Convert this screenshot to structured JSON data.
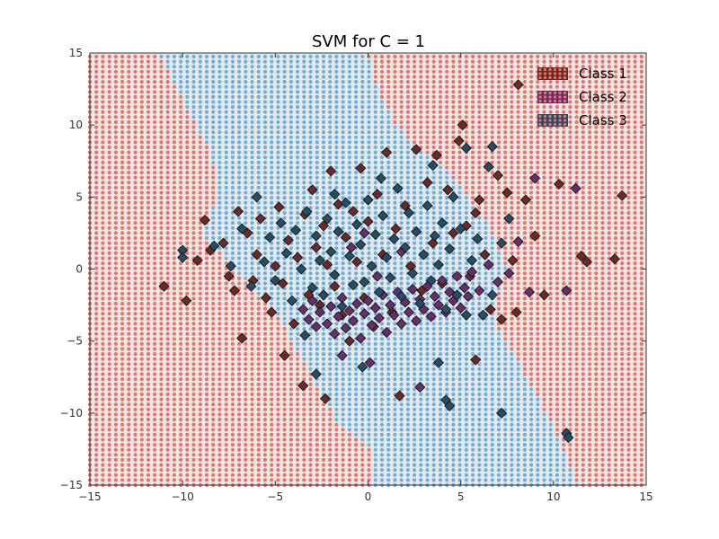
{
  "chart_data": {
    "type": "scatter",
    "title": "SVM for C = 1",
    "xlabel": "",
    "ylabel": "",
    "xlim": [
      -15,
      15
    ],
    "ylim": [
      -15,
      15
    ],
    "xticks": [
      -15,
      -10,
      -5,
      0,
      5,
      10,
      15
    ],
    "yticks": [
      -15,
      -10,
      -5,
      0,
      5,
      10,
      15
    ],
    "grid": false,
    "legend_position": "top-right",
    "background": {
      "description": "decision region grid",
      "outer_color": "#e8746a",
      "inner_color": "#6ab0e0",
      "band_polygon": [
        [
          -11.3,
          15
        ],
        [
          0,
          15
        ],
        [
          0.3,
          13
        ],
        [
          1.5,
          10
        ],
        [
          3,
          8
        ],
        [
          4.5,
          6.5
        ],
        [
          6.5,
          3
        ],
        [
          7.5,
          0
        ],
        [
          6.5,
          -3
        ],
        [
          8.5,
          -7.5
        ],
        [
          10,
          -11
        ],
        [
          11.3,
          -15
        ],
        [
          0.3,
          -15
        ],
        [
          0.2,
          -12.5
        ],
        [
          -1.5,
          -11
        ],
        [
          -3,
          -7.5
        ],
        [
          -5,
          -3
        ],
        [
          -9,
          2.5
        ],
        [
          -8,
          5.5
        ],
        [
          -8.5,
          8
        ]
      ]
    },
    "series": [
      {
        "name": "Class 1",
        "color": "#6b2a24",
        "marker": "diamond",
        "points": [
          [
            -11,
            -1.2
          ],
          [
            -9.8,
            -2.2
          ],
          [
            -9.2,
            0.6
          ],
          [
            -8.8,
            3.4
          ],
          [
            -8.5,
            1.3
          ],
          [
            -7.8,
            1.8
          ],
          [
            -7.5,
            -0.5
          ],
          [
            -7.2,
            -1.5
          ],
          [
            -7,
            4
          ],
          [
            -6.8,
            -4.8
          ],
          [
            -6.5,
            2.5
          ],
          [
            -6.2,
            -0.8
          ],
          [
            -6,
            1
          ],
          [
            -5.8,
            3.5
          ],
          [
            -5.5,
            -2
          ],
          [
            -5.2,
            -3
          ],
          [
            -5,
            0.2
          ],
          [
            -4.8,
            4.3
          ],
          [
            -4.6,
            -1
          ],
          [
            -4.5,
            -6
          ],
          [
            -4.3,
            2
          ],
          [
            -4,
            -3.8
          ],
          [
            -3.8,
            0.8
          ],
          [
            -3.5,
            -8.1
          ],
          [
            -3.4,
            3.8
          ],
          [
            -3.2,
            -1.8
          ],
          [
            -3,
            5.5
          ],
          [
            -2.8,
            1.5
          ],
          [
            -2.6,
            -2.5
          ],
          [
            -2.4,
            3
          ],
          [
            -2.2,
            0.3
          ],
          [
            -2,
            6.8
          ],
          [
            -1.8,
            -1.2
          ],
          [
            -1.6,
            4.5
          ],
          [
            -1.4,
            -3.2
          ],
          [
            -1.2,
            2.2
          ],
          [
            -1,
            -5
          ],
          [
            -0.8,
            4
          ],
          [
            -0.6,
            0.5
          ],
          [
            -0.4,
            7
          ],
          [
            -0.2,
            -2
          ],
          [
            0,
            3.3
          ],
          [
            0.3,
            -4
          ],
          [
            0.5,
            5.2
          ],
          [
            0.8,
            1
          ],
          [
            1,
            8.1
          ],
          [
            1.3,
            -3
          ],
          [
            1.5,
            2.8
          ],
          [
            1.7,
            -8.8
          ],
          [
            2,
            4.4
          ],
          [
            2.3,
            0.2
          ],
          [
            2.6,
            8.3
          ],
          [
            2.9,
            -1.5
          ],
          [
            3.2,
            6
          ],
          [
            3.5,
            1.8
          ],
          [
            3.7,
            7.9
          ],
          [
            4,
            -1
          ],
          [
            4.3,
            5.5
          ],
          [
            4.6,
            2.5
          ],
          [
            4.9,
            8.9
          ],
          [
            5.1,
            10
          ],
          [
            5.3,
            3
          ],
          [
            5.5,
            -0.5
          ],
          [
            5.8,
            -6.3
          ],
          [
            6,
            4.8
          ],
          [
            6.3,
            1
          ],
          [
            6.6,
            -2.8
          ],
          [
            7,
            6.5
          ],
          [
            7.2,
            -3.5
          ],
          [
            7.5,
            5.3
          ],
          [
            7.8,
            0.6
          ],
          [
            8,
            -3
          ],
          [
            8.5,
            4.8
          ],
          [
            9,
            2.3
          ],
          [
            9.5,
            -1.8
          ],
          [
            10.3,
            5.9
          ],
          [
            11.5,
            0.9
          ],
          [
            11.8,
            0.5
          ],
          [
            13.3,
            0.7
          ],
          [
            13.7,
            5.1
          ],
          [
            8.1,
            12.8
          ],
          [
            5.8,
            3.9
          ],
          [
            -2.3,
            -9
          ]
        ]
      },
      {
        "name": "Class 2",
        "color": "#6a2d6c",
        "marker": "diamond",
        "points": [
          [
            -3.5,
            -2.8
          ],
          [
            -3.2,
            -3.5
          ],
          [
            -3,
            -2.2
          ],
          [
            -2.8,
            -4
          ],
          [
            -2.6,
            -3
          ],
          [
            -2.4,
            -1.8
          ],
          [
            -2.2,
            -3.8
          ],
          [
            -2,
            -2.6
          ],
          [
            -1.8,
            -4.5
          ],
          [
            -1.6,
            -3.3
          ],
          [
            -1.4,
            -2
          ],
          [
            -1.2,
            -4.1
          ],
          [
            -1,
            -2.9
          ],
          [
            -0.8,
            -3.6
          ],
          [
            -0.6,
            -2.4
          ],
          [
            -0.4,
            -4.8
          ],
          [
            -0.2,
            -3.1
          ],
          [
            0,
            -2.2
          ],
          [
            0.2,
            -3.9
          ],
          [
            0.4,
            -2.7
          ],
          [
            0.6,
            -3.4
          ],
          [
            0.8,
            -1.8
          ],
          [
            1,
            -4.4
          ],
          [
            1.2,
            -2.5
          ],
          [
            1.4,
            -3.2
          ],
          [
            1.6,
            -1.6
          ],
          [
            1.8,
            -3.8
          ],
          [
            2,
            -2.3
          ],
          [
            2.2,
            -3
          ],
          [
            2.4,
            -1.4
          ],
          [
            2.6,
            -3.6
          ],
          [
            2.8,
            -2.1
          ],
          [
            3,
            -2.8
          ],
          [
            3.2,
            -1.2
          ],
          [
            3.4,
            -3.3
          ],
          [
            3.6,
            -1.9
          ],
          [
            3.8,
            -2.5
          ],
          [
            4,
            -0.8
          ],
          [
            4.2,
            -3
          ],
          [
            4.4,
            -1.6
          ],
          [
            4.6,
            -2.2
          ],
          [
            4.8,
            -0.5
          ],
          [
            5,
            -2.7
          ],
          [
            5.2,
            -1.3
          ],
          [
            5.4,
            -1.9
          ],
          [
            5.6,
            -0.2
          ],
          [
            6,
            -1.5
          ],
          [
            6.5,
            0.3
          ],
          [
            7,
            -0.9
          ],
          [
            7.6,
            -0.3
          ],
          [
            8.1,
            1.9
          ],
          [
            8.7,
            -1.6
          ],
          [
            9,
            6.3
          ],
          [
            10.7,
            -1.5
          ],
          [
            11.2,
            5.6
          ],
          [
            -1.4,
            -6
          ],
          [
            2.8,
            -8.2
          ],
          [
            -0.2,
            2.5
          ],
          [
            0.5,
            -0.5
          ],
          [
            1.8,
            1.2
          ],
          [
            -0.9,
            1.5
          ],
          [
            0.1,
            -6.5
          ]
        ]
      },
      {
        "name": "Class 3",
        "color": "#244d66",
        "marker": "diamond",
        "points": [
          [
            -10,
            1.3
          ],
          [
            -10,
            0.8
          ],
          [
            -8.3,
            1.6
          ],
          [
            -7.4,
            0.2
          ],
          [
            -6.8,
            2.8
          ],
          [
            -6.3,
            -1.2
          ],
          [
            -6,
            5
          ],
          [
            -5.6,
            0.5
          ],
          [
            -5.3,
            2.2
          ],
          [
            -5,
            -0.8
          ],
          [
            -4.7,
            3.2
          ],
          [
            -4.4,
            1.1
          ],
          [
            -4.1,
            -2.2
          ],
          [
            -3.9,
            2.7
          ],
          [
            -3.6,
            0
          ],
          [
            -3.3,
            4
          ],
          [
            -3,
            -1.3
          ],
          [
            -2.8,
            2.3
          ],
          [
            -2.6,
            0.6
          ],
          [
            -2.4,
            -1.8
          ],
          [
            -2.2,
            3.5
          ],
          [
            -2,
            1.2
          ],
          [
            -1.8,
            -0.4
          ],
          [
            -1.6,
            2.6
          ],
          [
            -1.4,
            -2.6
          ],
          [
            -1.2,
            4.6
          ],
          [
            -1,
            0.9
          ],
          [
            -0.8,
            -1.1
          ],
          [
            -0.6,
            3.1
          ],
          [
            -0.4,
            1.7
          ],
          [
            -0.2,
            -0.9
          ],
          [
            0,
            4.8
          ],
          [
            0.2,
            0.2
          ],
          [
            0.4,
            2.4
          ],
          [
            0.6,
            -1.6
          ],
          [
            0.8,
            3.7
          ],
          [
            1,
            0.8
          ],
          [
            1.2,
            -0.6
          ],
          [
            1.4,
            2.1
          ],
          [
            1.6,
            5.6
          ],
          [
            1.8,
            -1.9
          ],
          [
            2,
            1.5
          ],
          [
            2.2,
            3.9
          ],
          [
            2.4,
            -0.3
          ],
          [
            2.6,
            2.6
          ],
          [
            2.8,
            -2.4
          ],
          [
            3,
            1
          ],
          [
            3.2,
            4.4
          ],
          [
            3.4,
            -0.8
          ],
          [
            3.6,
            2.3
          ],
          [
            3.8,
            0.3
          ],
          [
            4,
            3.2
          ],
          [
            4.2,
            -2.8
          ],
          [
            4.4,
            1.4
          ],
          [
            4.6,
            5
          ],
          [
            4.8,
            -1.8
          ],
          [
            5,
            2.8
          ],
          [
            5.3,
            -3.2
          ],
          [
            5.6,
            0.6
          ],
          [
            5.9,
            2.1
          ],
          [
            6.2,
            -3.2
          ],
          [
            6.7,
            -1.8
          ],
          [
            7.2,
            1.8
          ],
          [
            7.6,
            3.5
          ],
          [
            3.5,
            7.2
          ],
          [
            5.3,
            8.4
          ],
          [
            6.7,
            8.5
          ],
          [
            6.5,
            7.1
          ],
          [
            3.8,
            -6.5
          ],
          [
            4.2,
            -9.1
          ],
          [
            4.4,
            -9.5
          ],
          [
            7.2,
            -10
          ],
          [
            10.7,
            -11.4
          ],
          [
            10.8,
            -11.7
          ],
          [
            -0.3,
            -6.8
          ],
          [
            -2.8,
            -7.3
          ],
          [
            -3.4,
            -4.6
          ],
          [
            0.7,
            6.3
          ],
          [
            -1.8,
            5.2
          ]
        ]
      }
    ]
  }
}
